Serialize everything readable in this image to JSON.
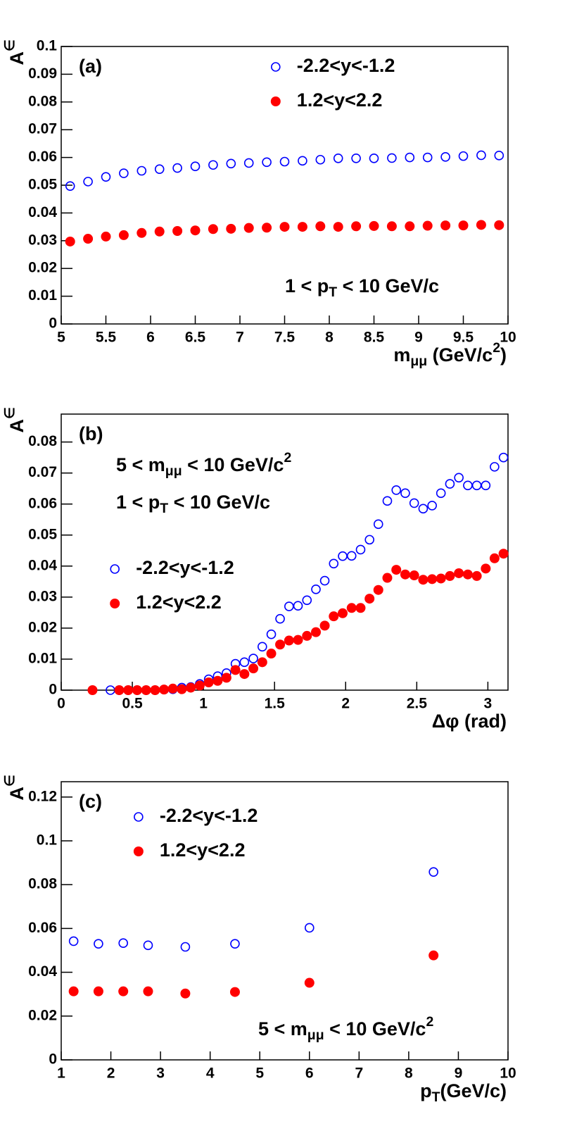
{
  "chart_data": [
    {
      "type": "scatter",
      "panel_label": "(a)",
      "ylabel": [
        "A",
        "∈"
      ],
      "xlabel": [
        "m",
        "μμ",
        " (GeV/c",
        "2",
        ")"
      ],
      "annotations": [
        [
          "1 < p",
          "T",
          " < 10 GeV/c"
        ]
      ],
      "legend": "upper center",
      "xlim": [
        5,
        10
      ],
      "xticks": [
        5,
        5.5,
        6,
        6.5,
        7,
        7.5,
        8,
        8.5,
        9,
        9.5,
        10
      ],
      "ylim": [
        0,
        0.1
      ],
      "yticks": [
        0,
        0.01,
        0.02,
        0.03,
        0.04,
        0.05,
        0.06,
        0.07,
        0.08,
        0.09,
        0.1
      ],
      "x": [
        5.1,
        5.3,
        5.5,
        5.7,
        5.9,
        6.1,
        6.3,
        6.5,
        6.7,
        6.9,
        7.1,
        7.3,
        7.5,
        7.7,
        7.9,
        8.1,
        8.3,
        8.5,
        8.7,
        8.9,
        9.1,
        9.3,
        9.5,
        9.7,
        9.9
      ],
      "series": [
        {
          "name": "-2.2<y<-1.2",
          "color": "#0000ff",
          "marker": "open",
          "values": [
            0.0497,
            0.0513,
            0.053,
            0.0543,
            0.0552,
            0.0558,
            0.0562,
            0.0568,
            0.0573,
            0.0578,
            0.058,
            0.0583,
            0.0585,
            0.0588,
            0.0592,
            0.0597,
            0.0597,
            0.0597,
            0.0598,
            0.06,
            0.06,
            0.0602,
            0.0605,
            0.0608,
            0.0607
          ]
        },
        {
          "name": "1.2<y<2.2",
          "color": "#ff0000",
          "marker": "filled",
          "values": [
            0.0297,
            0.0307,
            0.0315,
            0.032,
            0.0328,
            0.0333,
            0.0335,
            0.0337,
            0.0342,
            0.0343,
            0.0346,
            0.0347,
            0.035,
            0.035,
            0.0352,
            0.035,
            0.0352,
            0.0353,
            0.0352,
            0.0352,
            0.0354,
            0.0355,
            0.0355,
            0.0357,
            0.0356
          ]
        }
      ]
    },
    {
      "type": "scatter",
      "panel_label": "(b)",
      "ylabel": [
        "A",
        "∈"
      ],
      "xlabel": [
        "Δφ (rad)"
      ],
      "annotations": [
        [
          "5 < m",
          "μμ",
          " < 10 GeV/c",
          "2"
        ],
        [
          "1 < p",
          "T",
          " < 10 GeV/c"
        ]
      ],
      "legend": "center left",
      "xlim": [
        0,
        3.1416
      ],
      "xticks": [
        0,
        0.5,
        1,
        1.5,
        2,
        2.5,
        3
      ],
      "ylim": [
        0,
        0.089
      ],
      "yticks": [
        0,
        0.01,
        0.02,
        0.03,
        0.04,
        0.05,
        0.06,
        0.07,
        0.08
      ],
      "x": [
        0.22,
        0.283,
        0.346,
        0.408,
        0.471,
        0.534,
        0.597,
        0.66,
        0.723,
        0.785,
        0.848,
        0.911,
        0.974,
        1.037,
        1.1,
        1.162,
        1.225,
        1.288,
        1.351,
        1.414,
        1.477,
        1.539,
        1.602,
        1.665,
        1.728,
        1.791,
        1.853,
        1.916,
        1.979,
        2.042,
        2.105,
        2.168,
        2.23,
        2.293,
        2.356,
        2.419,
        2.482,
        2.545,
        2.608,
        2.67,
        2.733,
        2.796,
        2.859,
        2.922,
        2.985,
        3.047,
        3.11
      ],
      "series": [
        {
          "name": "-2.2<y<-1.2",
          "color": "#0000ff",
          "marker": "open",
          "values": [
            null,
            null,
            0,
            0,
            0,
            0,
            0,
            0,
            0.0002,
            0.0003,
            0.0008,
            0.001,
            0.002,
            0.0035,
            0.0045,
            0.0055,
            0.0085,
            0.009,
            0.0102,
            0.014,
            0.018,
            0.023,
            0.027,
            0.0272,
            0.029,
            0.0325,
            0.0353,
            0.0408,
            0.0432,
            0.0433,
            0.0453,
            0.0485,
            0.0535,
            0.061,
            0.0645,
            0.0635,
            0.0603,
            0.0585,
            0.0595,
            0.0635,
            0.0665,
            0.0685,
            0.066,
            0.066,
            0.066,
            0.072,
            0.075
          ]
        },
        {
          "name": "1.2<y<2.2",
          "color": "#ff0000",
          "marker": "filled",
          "values": [
            0,
            null,
            null,
            0,
            0,
            0,
            0,
            0,
            0.0002,
            0.0005,
            0.0003,
            0.0008,
            0.0015,
            0.0025,
            0.003,
            0.004,
            0.0065,
            0.0052,
            0.007,
            0.009,
            0.0118,
            0.0147,
            0.016,
            0.0162,
            0.0175,
            0.0187,
            0.0208,
            0.0238,
            0.0248,
            0.0265,
            0.0265,
            0.0295,
            0.0323,
            0.0362,
            0.0388,
            0.0373,
            0.037,
            0.0356,
            0.0358,
            0.036,
            0.0368,
            0.0377,
            0.0373,
            0.0368,
            0.0392,
            0.0425,
            0.044
          ]
        }
      ]
    },
    {
      "type": "scatter",
      "panel_label": "(c)",
      "ylabel": [
        "A",
        "∈"
      ],
      "xlabel": [
        "p",
        "T",
        "(GeV/c)"
      ],
      "annotations": [
        [
          "5 < m",
          "μμ",
          " < 10 GeV/c",
          "2"
        ]
      ],
      "legend": "upper left",
      "xlim": [
        1,
        10
      ],
      "xticks": [
        1,
        2,
        3,
        4,
        5,
        6,
        7,
        8,
        9,
        10
      ],
      "ylim": [
        0,
        0.127
      ],
      "yticks": [
        0,
        0.02,
        0.04,
        0.06,
        0.08,
        0.1,
        0.12
      ],
      "x": [
        1.25,
        1.75,
        2.25,
        2.75,
        3.5,
        4.5,
        6,
        8.5
      ],
      "series": [
        {
          "name": "-2.2<y<-1.2",
          "color": "#0000ff",
          "marker": "open",
          "values": [
            0.0542,
            0.053,
            0.0533,
            0.0523,
            0.0516,
            0.053,
            0.0603,
            0.0858
          ]
        },
        {
          "name": "1.2<y<2.2",
          "color": "#ff0000",
          "marker": "filled",
          "values": [
            0.0313,
            0.0313,
            0.0313,
            0.0313,
            0.0303,
            0.031,
            0.0352,
            0.0477
          ]
        }
      ]
    }
  ]
}
